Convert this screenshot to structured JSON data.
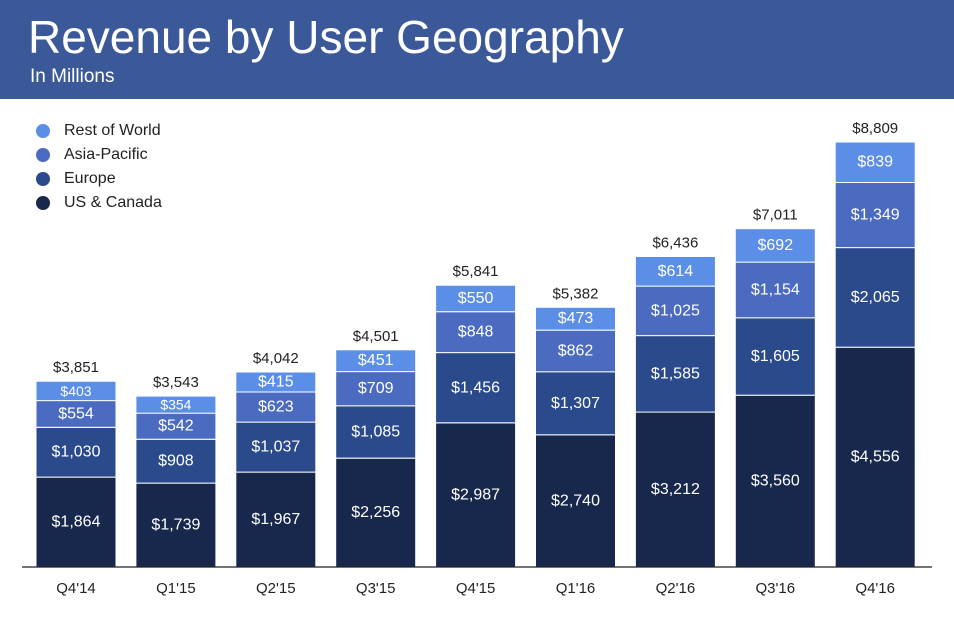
{
  "header": {
    "title": "Revenue by User Geography",
    "subtitle": "In Millions"
  },
  "colors": {
    "banner": "#3b5998",
    "rest_of_world": "#5b8ee6",
    "asia_pacific": "#4a6bbf",
    "europe": "#2b4a8c",
    "us_canada": "#18284c"
  },
  "legend": [
    {
      "label": "Rest of World",
      "color": "#5b8ee6"
    },
    {
      "label": "Asia-Pacific",
      "color": "#4a6bbf"
    },
    {
      "label": "Europe",
      "color": "#2b4a8c"
    },
    {
      "label": "US & Canada",
      "color": "#18284c"
    }
  ],
  "chart_data": {
    "type": "bar",
    "stacked": true,
    "title": "Revenue by User Geography",
    "subtitle": "In Millions",
    "categories": [
      "Q4'14",
      "Q1'15",
      "Q2'15",
      "Q3'15",
      "Q4'15",
      "Q1'16",
      "Q2'16",
      "Q3'16",
      "Q4'16"
    ],
    "series": [
      {
        "name": "US & Canada",
        "color": "#18284c",
        "values": [
          1864,
          1739,
          1967,
          2256,
          2987,
          2740,
          3212,
          3560,
          4556
        ],
        "labels": [
          "$1,864",
          "$1,739",
          "$1,967",
          "$2,256",
          "$2,987",
          "$2,740",
          "$3,212",
          "$3,560",
          "$4,556"
        ]
      },
      {
        "name": "Europe",
        "color": "#2b4a8c",
        "values": [
          1030,
          908,
          1037,
          1085,
          1456,
          1307,
          1585,
          1605,
          2065
        ],
        "labels": [
          "$1,030",
          "$908",
          "$1,037",
          "$1,085",
          "$1,456",
          "$1,307",
          "$1,585",
          "$1,605",
          "$2,065"
        ]
      },
      {
        "name": "Asia-Pacific",
        "color": "#4a6bbf",
        "values": [
          554,
          542,
          623,
          709,
          848,
          862,
          1025,
          1154,
          1349
        ],
        "labels": [
          "$554",
          "$542",
          "$623",
          "$709",
          "$848",
          "$862",
          "$1,025",
          "$1,154",
          "$1,349"
        ]
      },
      {
        "name": "Rest of World",
        "color": "#5b8ee6",
        "values": [
          403,
          354,
          415,
          451,
          550,
          473,
          614,
          692,
          839
        ],
        "labels": [
          "$403",
          "$354",
          "$415",
          "$451",
          "$550",
          "$473",
          "$614",
          "$692",
          "$839"
        ]
      }
    ],
    "totals": [
      3851,
      3543,
      4042,
      4501,
      5841,
      5382,
      6436,
      7011,
      8809
    ],
    "total_labels": [
      "$3,851",
      "$3,543",
      "$4,042",
      "$4,501",
      "$5,841",
      "$5,382",
      "$6,436",
      "$7,011",
      "$8,809"
    ],
    "legend_position": "top-left",
    "grid": false,
    "ylim": [
      0,
      8809
    ]
  }
}
